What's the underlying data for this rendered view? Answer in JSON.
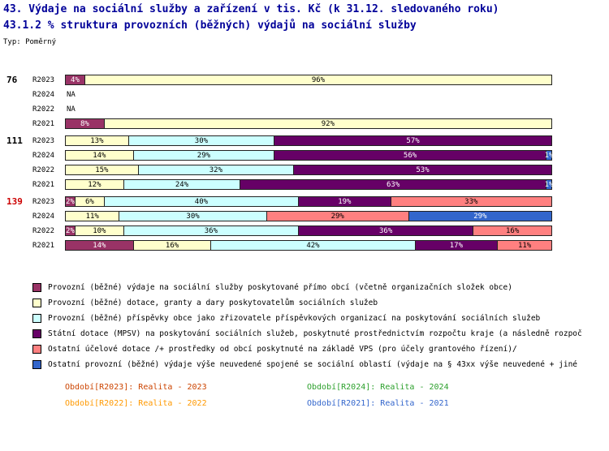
{
  "header": {
    "title_line1": "43. Výdaje na sociální služby a zařízení v tis. Kč (k 31.12. sledovaného roku)",
    "title_line2": "43.1.2 % struktura provozních (běžných) výdajů na sociální služby",
    "type_label": "Typ: Poměrný"
  },
  "colors": {
    "maroon": "#993366",
    "yellow": "#FFFFCC",
    "cyan": "#CCFFFF",
    "purple": "#660066",
    "salmon": "#FF8080",
    "blue": "#3366CC",
    "title": "#000099",
    "group_139_label": "#CC0000"
  },
  "chart_data": {
    "type": "bar",
    "orientation": "horizontal",
    "stacked": true,
    "unit": "percent",
    "x_range": [
      0,
      100
    ],
    "series_keys": [
      "maroon",
      "yellow",
      "cyan",
      "purple",
      "salmon",
      "blue"
    ],
    "groups": [
      {
        "label": "76",
        "label_color": "#000000",
        "rows": [
          {
            "label": "R2023",
            "segments": [
              {
                "key": "maroon",
                "value": 4,
                "text": "4%"
              },
              {
                "key": "yellow",
                "value": 96,
                "text": "96%"
              }
            ]
          },
          {
            "label": "R2024",
            "na": true,
            "na_text": "NA"
          },
          {
            "label": "R2022",
            "na": true,
            "na_text": "NA"
          },
          {
            "label": "R2021",
            "segments": [
              {
                "key": "maroon",
                "value": 8,
                "text": "8%"
              },
              {
                "key": "yellow",
                "value": 92,
                "text": "92%"
              }
            ]
          }
        ]
      },
      {
        "label": "111",
        "label_color": "#000000",
        "rows": [
          {
            "label": "R2023",
            "segments": [
              {
                "key": "yellow",
                "value": 13,
                "text": "13%"
              },
              {
                "key": "cyan",
                "value": 30,
                "text": "30%"
              },
              {
                "key": "purple",
                "value": 57,
                "text": "57%"
              }
            ]
          },
          {
            "label": "R2024",
            "segments": [
              {
                "key": "yellow",
                "value": 14,
                "text": "14%"
              },
              {
                "key": "cyan",
                "value": 29,
                "text": "29%"
              },
              {
                "key": "purple",
                "value": 56,
                "text": "56%"
              },
              {
                "key": "blue",
                "value": 1,
                "text": "1%"
              }
            ]
          },
          {
            "label": "R2022",
            "segments": [
              {
                "key": "yellow",
                "value": 15,
                "text": "15%"
              },
              {
                "key": "cyan",
                "value": 32,
                "text": "32%"
              },
              {
                "key": "purple",
                "value": 53,
                "text": "53%"
              }
            ]
          },
          {
            "label": "R2021",
            "segments": [
              {
                "key": "yellow",
                "value": 12,
                "text": "12%"
              },
              {
                "key": "cyan",
                "value": 24,
                "text": "24%"
              },
              {
                "key": "purple",
                "value": 63,
                "text": "63%"
              },
              {
                "key": "blue",
                "value": 1,
                "text": "1%"
              }
            ]
          }
        ]
      },
      {
        "label": "139",
        "label_color": "#CC0000",
        "rows": [
          {
            "label": "R2023",
            "segments": [
              {
                "key": "maroon",
                "value": 2,
                "text": "2%"
              },
              {
                "key": "yellow",
                "value": 6,
                "text": "6%"
              },
              {
                "key": "cyan",
                "value": 40,
                "text": "40%"
              },
              {
                "key": "purple",
                "value": 19,
                "text": "19%"
              },
              {
                "key": "salmon",
                "value": 33,
                "text": "33%"
              }
            ]
          },
          {
            "label": "R2024",
            "segments": [
              {
                "key": "yellow",
                "value": 11,
                "text": "11%"
              },
              {
                "key": "cyan",
                "value": 30,
                "text": "30%"
              },
              {
                "key": "salmon",
                "value": 29,
                "text": "29%"
              },
              {
                "key": "blue",
                "value": 29,
                "text": "29%"
              }
            ]
          },
          {
            "label": "R2022",
            "segments": [
              {
                "key": "maroon",
                "value": 2,
                "text": "2%"
              },
              {
                "key": "yellow",
                "value": 10,
                "text": "10%"
              },
              {
                "key": "cyan",
                "value": 36,
                "text": "36%"
              },
              {
                "key": "purple",
                "value": 36,
                "text": "36%"
              },
              {
                "key": "salmon",
                "value": 16,
                "text": "16%"
              }
            ]
          },
          {
            "label": "R2021",
            "segments": [
              {
                "key": "maroon",
                "value": 14,
                "text": "14%"
              },
              {
                "key": "yellow",
                "value": 16,
                "text": "16%"
              },
              {
                "key": "cyan",
                "value": 42,
                "text": "42%"
              },
              {
                "key": "purple",
                "value": 17,
                "text": "17%"
              },
              {
                "key": "salmon",
                "value": 11,
                "text": "11%"
              }
            ]
          }
        ]
      }
    ],
    "legend": [
      {
        "key": "maroon",
        "text": "Provozní (běžné) výdaje na sociální služby poskytované přímo obcí (včetně organizačních složek obce)"
      },
      {
        "key": "yellow",
        "text": "Provozní (běžné) dotace, granty a dary poskytovatelům sociálních služeb"
      },
      {
        "key": "cyan",
        "text": "Provozní (běžné) příspěvky obce jako zřizovatele příspěvkových organizací na poskytování sociálních služeb"
      },
      {
        "key": "purple",
        "text": "Státní dotace (MPSV) na poskytování sociálních služeb, poskytnuté prostřednictvím rozpočtu kraje (a následně rozpoč"
      },
      {
        "key": "salmon",
        "text": "Ostatní účelové dotace /+ prostředky od obcí poskytnuté na základě VPS (pro účely grantového řízení)/"
      },
      {
        "key": "blue",
        "text": "Ostatní provozní (běžné) výdaje výše neuvedené spojené se sociální oblastí (výdaje na § 43xx výše neuvedené + jiné"
      }
    ],
    "period_labels": [
      {
        "text": "Období[R2023]: Realita - 2023",
        "color": "#CC4400"
      },
      {
        "text": "Období[R2024]: Realita - 2024",
        "color": "#2CA02C"
      },
      {
        "text": "Období[R2022]: Realita - 2022",
        "color": "#FF9900"
      },
      {
        "text": "Období[R2021]: Realita - 2021",
        "color": "#3366CC"
      }
    ]
  }
}
